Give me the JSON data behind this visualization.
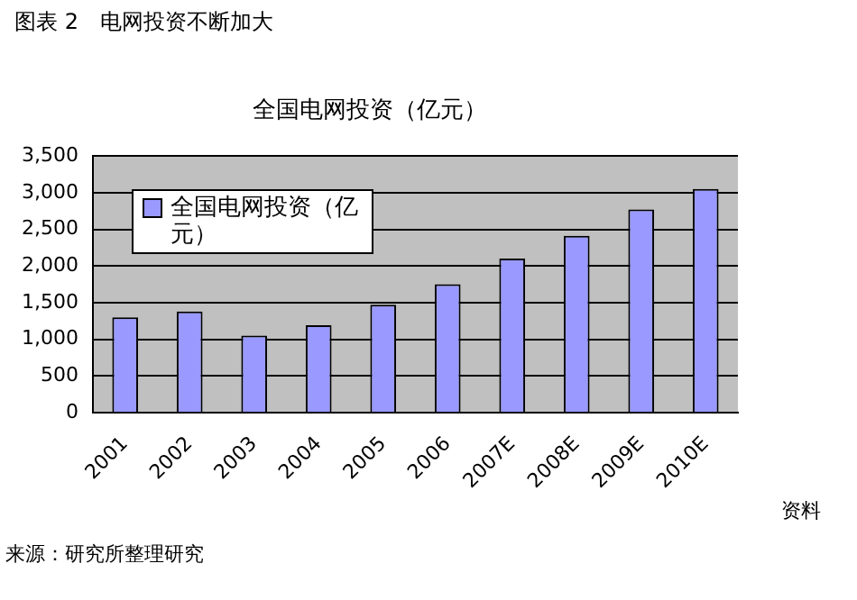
{
  "chart_data": {
    "type": "bar",
    "title": "图表 2　电网投资不断加大",
    "subtitle": "全国电网投资（亿元）",
    "categories": [
      "2001",
      "2002",
      "2003",
      "2004",
      "2005",
      "2006",
      "2007E",
      "2008E",
      "2009E",
      "2010E"
    ],
    "series": [
      {
        "name": "全国电网投资（亿元）",
        "color": "#9999ff",
        "values": [
          1300,
          1380,
          1050,
          1190,
          1470,
          1750,
          2100,
          2410,
          2770,
          3050
        ]
      }
    ],
    "ylim": [
      0,
      3500
    ],
    "yticks": [
      0,
      500,
      {
        "value": 1000,
        "label": "1,000"
      },
      {
        "value": 1500,
        "label": "1,500"
      },
      {
        "value": 2000,
        "label": "2,000"
      },
      {
        "value": 2500,
        "label": "2,500"
      },
      {
        "value": 3000,
        "label": "3,000"
      },
      {
        "value": 3500,
        "label": "3,500"
      }
    ],
    "grid": "y",
    "legend": "top left",
    "annotations": [
      "资料",
      "来源：研究所整理研究"
    ]
  }
}
